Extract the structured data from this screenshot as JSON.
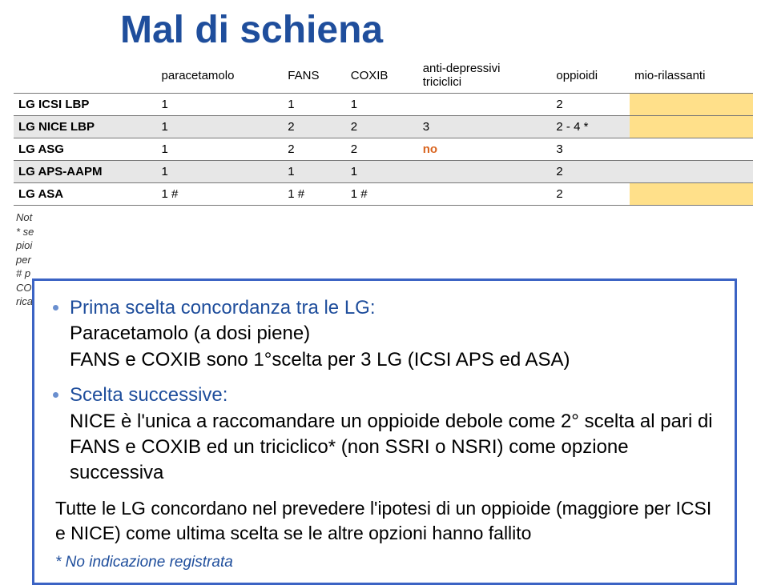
{
  "title": "Mal di schiena",
  "table": {
    "columns": [
      "",
      "paracetamolo",
      "FANS",
      "COXIB",
      "anti-depressivi triciclici",
      "oppioidi",
      "mio-rilassanti"
    ],
    "rows": [
      {
        "label": "LG ICSI LBP",
        "cells": [
          "1",
          "1",
          "1",
          "",
          "2",
          ""
        ],
        "shaded": false,
        "highlight_last": true
      },
      {
        "label": "LG NICE LBP",
        "cells": [
          "1",
          "2",
          "2",
          "3",
          "2 - 4 *",
          ""
        ],
        "shaded": true,
        "highlight_last": true
      },
      {
        "label": "LG ASG",
        "cells": [
          "1",
          "2",
          "2",
          "no",
          "3",
          ""
        ],
        "shaded": false,
        "orange_col": 4,
        "highlight_last": false
      },
      {
        "label": "LG APS-AAPM",
        "cells": [
          "1",
          "1",
          "1",
          "",
          "2",
          ""
        ],
        "shaded": true,
        "highlight_last": false
      },
      {
        "label": "LG ASA",
        "cells": [
          "1 #",
          "1 #",
          "1 #",
          "",
          "2",
          ""
        ],
        "shaded": false,
        "highlight_last": true
      }
    ]
  },
  "notes": {
    "line1": "Not",
    "line2": "* se",
    "line3": "pioi",
    "line4": "per",
    "line5": "# p",
    "line6": "CO.",
    "line7": "rica"
  },
  "overlay": {
    "item1_head": "Prima scelta concordanza tra le LG:",
    "item1_l1": "Paracetamolo (a dosi piene)",
    "item1_l2": "FANS e COXIB sono 1°scelta per 3 LG (ICSI APS ed ASA)",
    "item2_head": "Scelta successive:",
    "item2_l1": "NICE è l'unica a raccomandare un oppioide debole come 2° scelta al pari di FANS e COXIB ed un triciclico* (non SSRI o NSRI) come opzione successiva",
    "para": "Tutte le LG concordano nel prevedere l'ipotesi di un oppioide (maggiore per ICSI e NICE) come ultima scelta se le altre opzioni hanno fallito",
    "footnote": "* No indicazione registrata"
  },
  "colors": {
    "title": "#1f4e9c",
    "border": "#3b63c4",
    "shaded_row": "#e7e7e7",
    "highlight": "#ffe08a",
    "orange": "#d9641f"
  }
}
